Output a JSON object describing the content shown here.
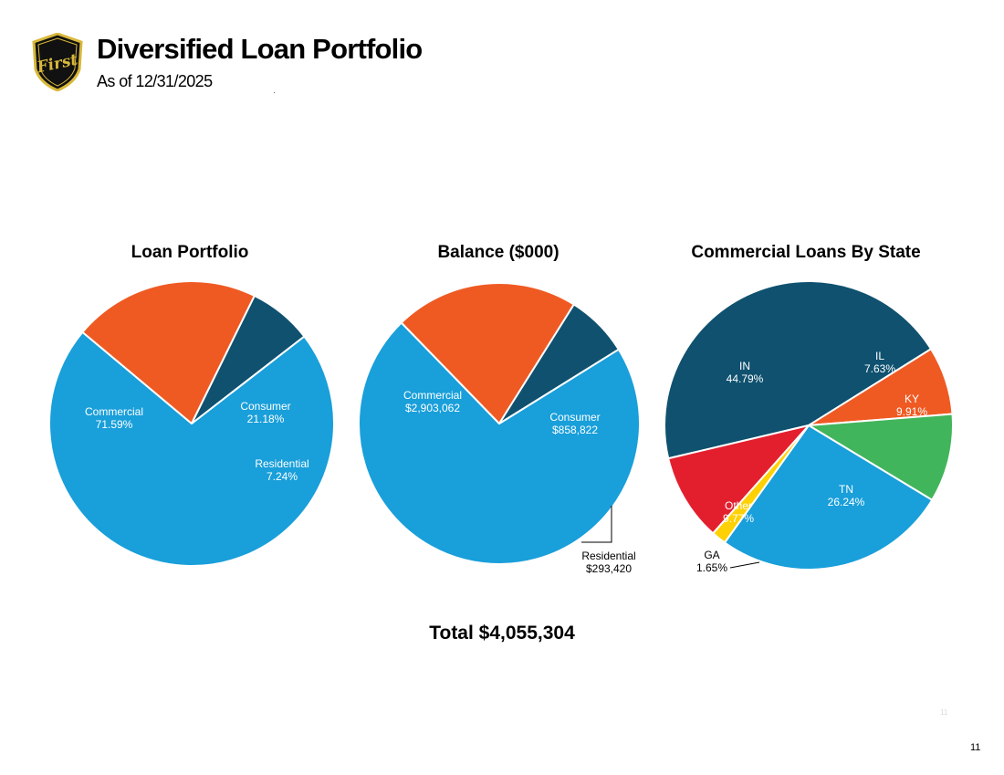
{
  "header": {
    "logo_text": "First",
    "title": "Diversified Loan Portfolio",
    "subtitle": "As of 12/31/2025"
  },
  "chart_data": [
    {
      "type": "pie",
      "title": "Loan Portfolio",
      "slices": [
        {
          "label": "Commercial",
          "value_label": "71.59%",
          "value": 71.59,
          "color": "#199fda"
        },
        {
          "label": "Consumer",
          "value_label": "21.18%",
          "value": 21.18,
          "color": "#ef5a23"
        },
        {
          "label": "Residential",
          "value_label": "7.24%",
          "value": 7.24,
          "color": "#0f516f"
        }
      ]
    },
    {
      "type": "pie",
      "title": "Balance ($000)",
      "slices": [
        {
          "label": "Commercial",
          "value_label": "$2,903,062",
          "value": 2903062,
          "color": "#199fda"
        },
        {
          "label": "Consumer",
          "value_label": "$858,822",
          "value": 858822,
          "color": "#ef5a23"
        },
        {
          "label": "Residential",
          "value_label": "$293,420",
          "value": 293420,
          "color": "#0f516f"
        }
      ]
    },
    {
      "type": "pie",
      "title": "Commercial Loans By State",
      "slices": [
        {
          "label": "IN",
          "value_label": "44.79%",
          "value": 44.79,
          "color": "#0f516f"
        },
        {
          "label": "IL",
          "value_label": "7.63%",
          "value": 7.63,
          "color": "#ef5a23"
        },
        {
          "label": "KY",
          "value_label": "9.91%",
          "value": 9.91,
          "color": "#41b55b"
        },
        {
          "label": "TN",
          "value_label": "26.24%",
          "value": 26.24,
          "color": "#199fda"
        },
        {
          "label": "GA",
          "value_label": "1.65%",
          "value": 1.65,
          "color": "#fed104"
        },
        {
          "label": "Other",
          "value_label": "9.77%",
          "value": 9.77,
          "color": "#e31f2e"
        }
      ]
    }
  ],
  "total": {
    "label": "Total",
    "value": "$4,055,304"
  },
  "footer": {
    "page_number": "11",
    "ghost_page_number": "11"
  },
  "colors": {
    "logo_bg": "#111111",
    "logo_gold": "#d8b83a"
  }
}
